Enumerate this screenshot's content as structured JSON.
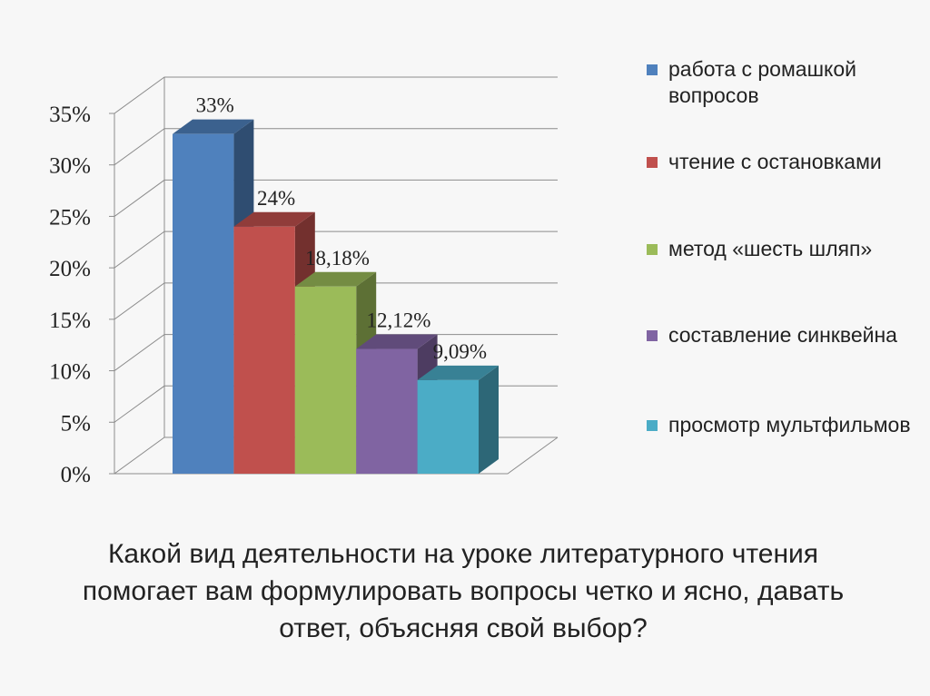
{
  "chart_data": {
    "type": "bar",
    "categories": [
      "работа с ромашкой вопросов",
      "чтение с остановками",
      "метод «шесть шляп»",
      "составление синквейна",
      "просмотр мультфильмов"
    ],
    "values": [
      33,
      24,
      18.18,
      12.12,
      9.09
    ],
    "data_labels": [
      "33%",
      "24%",
      "18,18%",
      "12,12%",
      "9,09%"
    ],
    "colors": [
      "#4f81bd",
      "#c0504d",
      "#9bbb59",
      "#8064a2",
      "#4bacc6"
    ],
    "ylim": [
      0,
      35
    ],
    "yticks": [
      "0%",
      "5%",
      "10%",
      "15%",
      "20%",
      "25%",
      "30%",
      "35%"
    ],
    "grid": true,
    "legend_position": "right",
    "three_d": true
  },
  "legend": [
    {
      "label": "работа с ромашкой вопросов",
      "color": "#4f81bd"
    },
    {
      "label": "чтение с остановками",
      "color": "#c0504d"
    },
    {
      "label": "метод «шесть шляп»",
      "color": "#9bbb59"
    },
    {
      "label": "составление синквейна",
      "color": "#8064a2"
    },
    {
      "label": "просмотр мультфильмов",
      "color": "#4bacc6"
    }
  ],
  "caption": "Какой вид деятельности на уроке литературного чтения помогает вам формулировать вопросы четко и ясно, давать ответ, объясняя свой выбор?"
}
